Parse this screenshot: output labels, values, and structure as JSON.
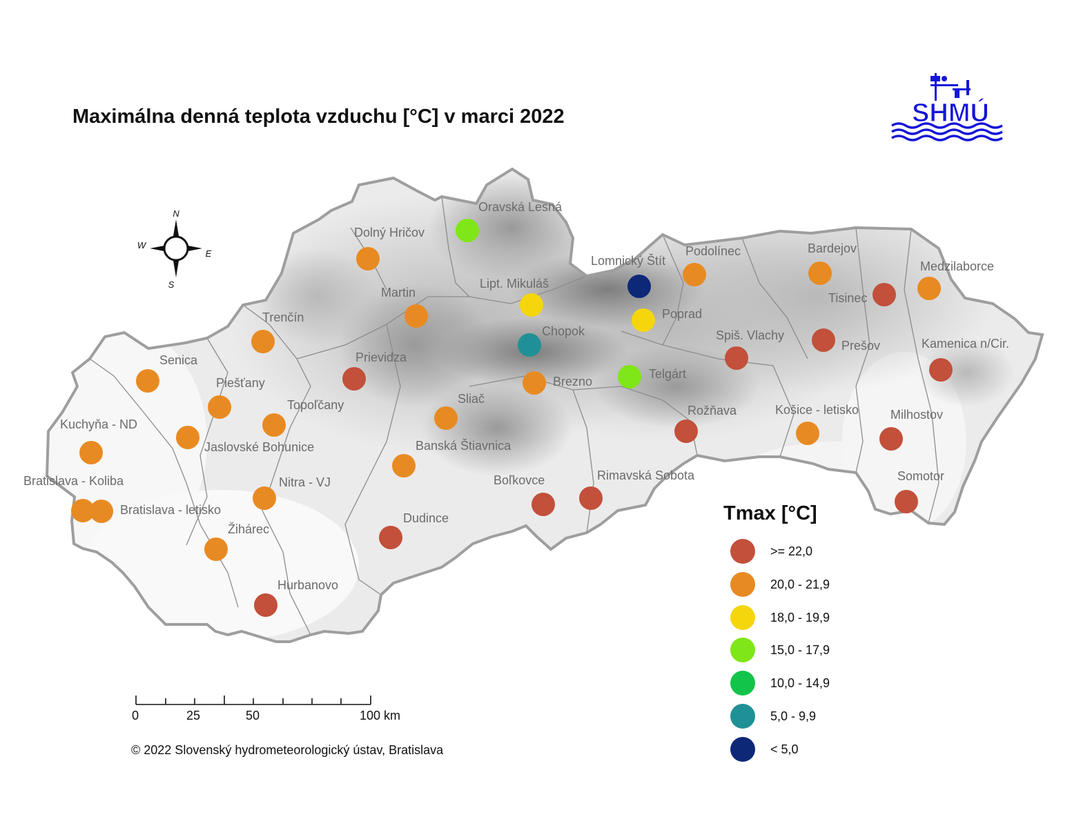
{
  "title": "Maximálna denná teplota vzduchu [°C] v marci 2022",
  "logo_text": "SHMÚ",
  "compass": {
    "n": "N",
    "s": "S",
    "e": "E",
    "w": "W"
  },
  "legend": {
    "title": "Tmax [°C]",
    "classes": [
      {
        "label": ">= 22,0",
        "color": "#c2503b"
      },
      {
        "label": "20,0 - 21,9",
        "color": "#e88a22"
      },
      {
        "label": "18,0 - 19,9",
        "color": "#f5d60c"
      },
      {
        "label": "15,0 - 17,9",
        "color": "#7fe617"
      },
      {
        "label": "10,0 - 14,9",
        "color": "#12c54a"
      },
      {
        "label": "5,0 - 9,9",
        "color": "#1f9196"
      },
      {
        "label": "< 5,0",
        "color": "#0e2878"
      }
    ]
  },
  "scale_bar": {
    "labels": [
      "0",
      "25",
      "50",
      "100 km"
    ]
  },
  "copyright": "© 2022 Slovenský hydrometeorologický ústav, Bratislava",
  "stations": [
    {
      "name": "Oravská Lesná",
      "class": 3
    },
    {
      "name": "Dolný Hričov",
      "class": 1
    },
    {
      "name": "Martin",
      "class": 1
    },
    {
      "name": "Lipt. Mikuláš",
      "class": 2
    },
    {
      "name": "Chopok",
      "class": 5
    },
    {
      "name": "Lomnický Štít",
      "class": 6
    },
    {
      "name": "Podolínec",
      "class": 1
    },
    {
      "name": "Poprad",
      "class": 2
    },
    {
      "name": "Bardejov",
      "class": 1
    },
    {
      "name": "Medzilaborce",
      "class": 1
    },
    {
      "name": "Tisinec",
      "class": 0
    },
    {
      "name": "Prešov",
      "class": 0
    },
    {
      "name": "Spiš. Vlachy",
      "class": 0
    },
    {
      "name": "Kamenica n/Cir.",
      "class": 0
    },
    {
      "name": "Telgárt",
      "class": 3
    },
    {
      "name": "Brezno",
      "class": 1
    },
    {
      "name": "Trenčín",
      "class": 1
    },
    {
      "name": "Senica",
      "class": 1
    },
    {
      "name": "Prievidza",
      "class": 0
    },
    {
      "name": "Piešťany",
      "class": 1
    },
    {
      "name": "Topoľčany",
      "class": 1
    },
    {
      "name": "Sliač",
      "class": 1
    },
    {
      "name": "Kuchyňa - ND",
      "class": 1
    },
    {
      "name": "Jaslovské Bohunice",
      "class": 1
    },
    {
      "name": "Banská Štiavnica",
      "class": 1
    },
    {
      "name": "Rožňava",
      "class": 0
    },
    {
      "name": "Košice - letisko",
      "class": 1
    },
    {
      "name": "Milhostov",
      "class": 0
    },
    {
      "name": "Bratislava - Koliba",
      "class": 1
    },
    {
      "name": "Nitra - VJ",
      "class": 1
    },
    {
      "name": "Bratislava - letisko",
      "class": 1
    },
    {
      "name": "Boľkovce",
      "class": 0
    },
    {
      "name": "Rimavská Sobota",
      "class": 0
    },
    {
      "name": "Somotor",
      "class": 0
    },
    {
      "name": "Žihárec",
      "class": 1
    },
    {
      "name": "Dudince",
      "class": 0
    },
    {
      "name": "Hurbanovo",
      "class": 0
    }
  ]
}
